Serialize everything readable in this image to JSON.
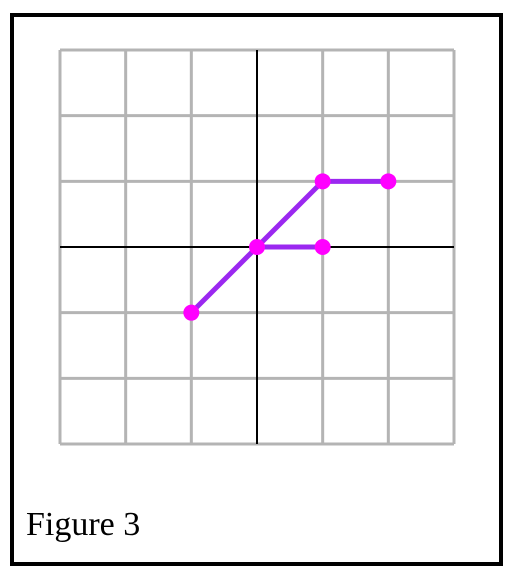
{
  "figure": {
    "caption": "Figure 3"
  },
  "colors": {
    "grid": "#b4b4b4",
    "axis": "#000000",
    "segment": "#9b28f0",
    "point": "#ff00ff"
  },
  "chart_data": {
    "type": "line",
    "xlim": [
      -3,
      3
    ],
    "ylim": [
      -3,
      3
    ],
    "grid": true,
    "points": [
      {
        "x": -1,
        "y": -1
      },
      {
        "x": 0,
        "y": 0
      },
      {
        "x": 1,
        "y": 1
      },
      {
        "x": 2,
        "y": 1
      },
      {
        "x": 1,
        "y": 0
      }
    ],
    "segments": [
      {
        "from": [
          -1,
          -1
        ],
        "to": [
          0,
          0
        ]
      },
      {
        "from": [
          0,
          0
        ],
        "to": [
          1,
          1
        ]
      },
      {
        "from": [
          1,
          1
        ],
        "to": [
          2,
          1
        ]
      },
      {
        "from": [
          0,
          0
        ],
        "to": [
          1,
          0
        ]
      }
    ]
  }
}
